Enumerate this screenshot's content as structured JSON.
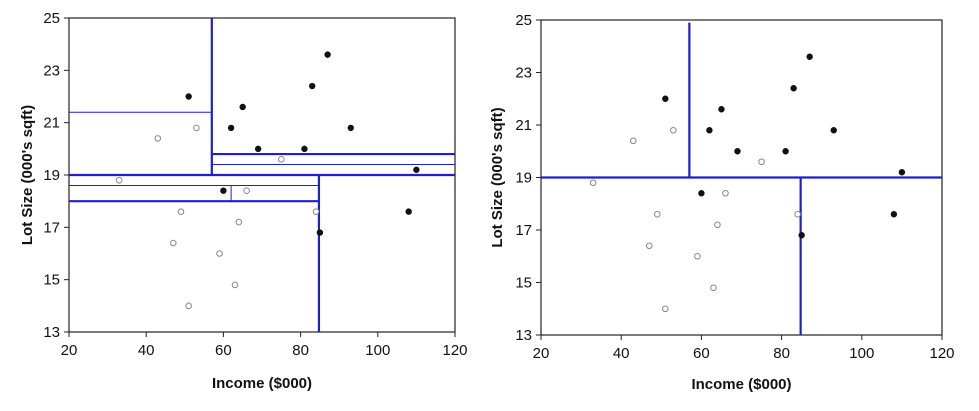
{
  "chart_data": [
    {
      "type": "scatter",
      "title": "",
      "xlabel": "Income ($000)",
      "ylabel": "Lot Size (000's sqft)",
      "xlim": [
        20,
        120
      ],
      "ylim": [
        13,
        25
      ],
      "xticks": [
        20,
        40,
        60,
        80,
        100,
        120
      ],
      "yticks": [
        13,
        15,
        17,
        19,
        21,
        23,
        25
      ],
      "grid": false,
      "series": [
        {
          "marker": "filled",
          "color": "#111111",
          "points": [
            [
              51,
              22
            ],
            [
              65,
              21.6
            ],
            [
              62,
              20.8
            ],
            [
              69,
              20
            ],
            [
              87,
              23.6
            ],
            [
              83,
              22.4
            ],
            [
              81,
              20
            ],
            [
              93,
              20.8
            ],
            [
              110,
              19.2
            ],
            [
              60,
              18.4
            ],
            [
              108,
              17.6
            ],
            [
              85,
              16.8
            ]
          ]
        },
        {
          "marker": "hollow",
          "color": "#888888",
          "points": [
            [
              43,
              20.4
            ],
            [
              53,
              20.8
            ],
            [
              75,
              19.6
            ],
            [
              33,
              18.8
            ],
            [
              66,
              18.4
            ],
            [
              49,
              17.6
            ],
            [
              64,
              17.2
            ],
            [
              47,
              16.4
            ],
            [
              59,
              16
            ],
            [
              63,
              14.8
            ],
            [
              51,
              14
            ],
            [
              84,
              17.6
            ]
          ]
        }
      ],
      "splits": [
        {
          "orient": "v",
          "at": 57,
          "from": 19,
          "to": 25,
          "style": "thick"
        },
        {
          "orient": "h",
          "at": 19,
          "from": 20,
          "to": 120,
          "style": "thick"
        },
        {
          "orient": "v",
          "at": 84.75,
          "from": 13,
          "to": 19,
          "style": "thick"
        },
        {
          "orient": "h",
          "at": 21.4,
          "from": 20,
          "to": 57,
          "style": "thin"
        },
        {
          "orient": "h",
          "at": 19.8,
          "from": 57,
          "to": 120,
          "style": "thick"
        },
        {
          "orient": "h",
          "at": 19.4,
          "from": 57,
          "to": 120,
          "style": "thin"
        },
        {
          "orient": "h",
          "at": 18.6,
          "from": 20,
          "to": 84.75,
          "style": "thin"
        },
        {
          "orient": "h",
          "at": 18,
          "from": 20,
          "to": 84.75,
          "style": "thick"
        },
        {
          "orient": "v",
          "at": 62,
          "from": 18,
          "to": 18.6,
          "style": "thin"
        }
      ]
    },
    {
      "type": "scatter",
      "title": "",
      "xlabel": "Income ($000)",
      "ylabel": "Lot Size (000's sqft)",
      "xlim": [
        20,
        120
      ],
      "ylim": [
        13,
        25
      ],
      "xticks": [
        20,
        40,
        60,
        80,
        100,
        120
      ],
      "yticks": [
        13,
        15,
        17,
        19,
        21,
        23,
        25
      ],
      "grid": false,
      "series": [
        {
          "marker": "filled",
          "color": "#111111",
          "points": [
            [
              51,
              22
            ],
            [
              65,
              21.6
            ],
            [
              62,
              20.8
            ],
            [
              69,
              20
            ],
            [
              87,
              23.6
            ],
            [
              83,
              22.4
            ],
            [
              81,
              20
            ],
            [
              93,
              20.8
            ],
            [
              110,
              19.2
            ],
            [
              60,
              18.4
            ],
            [
              108,
              17.6
            ],
            [
              85,
              16.8
            ]
          ]
        },
        {
          "marker": "hollow",
          "color": "#888888",
          "points": [
            [
              43,
              20.4
            ],
            [
              53,
              20.8
            ],
            [
              75,
              19.6
            ],
            [
              33,
              18.8
            ],
            [
              66,
              18.4
            ],
            [
              49,
              17.6
            ],
            [
              64,
              17.2
            ],
            [
              47,
              16.4
            ],
            [
              59,
              16
            ],
            [
              63,
              14.8
            ],
            [
              51,
              14
            ],
            [
              84,
              17.6
            ]
          ]
        }
      ],
      "splits": [
        {
          "orient": "v",
          "at": 57,
          "from": 19,
          "to": 24.9,
          "style": "thick"
        },
        {
          "orient": "h",
          "at": 19,
          "from": 20,
          "to": 120,
          "style": "thick"
        },
        {
          "orient": "v",
          "at": 84.75,
          "from": 13,
          "to": 19,
          "style": "thick"
        }
      ]
    }
  ],
  "colors": {
    "split": "#1f1fcf",
    "frame": "#222222"
  }
}
